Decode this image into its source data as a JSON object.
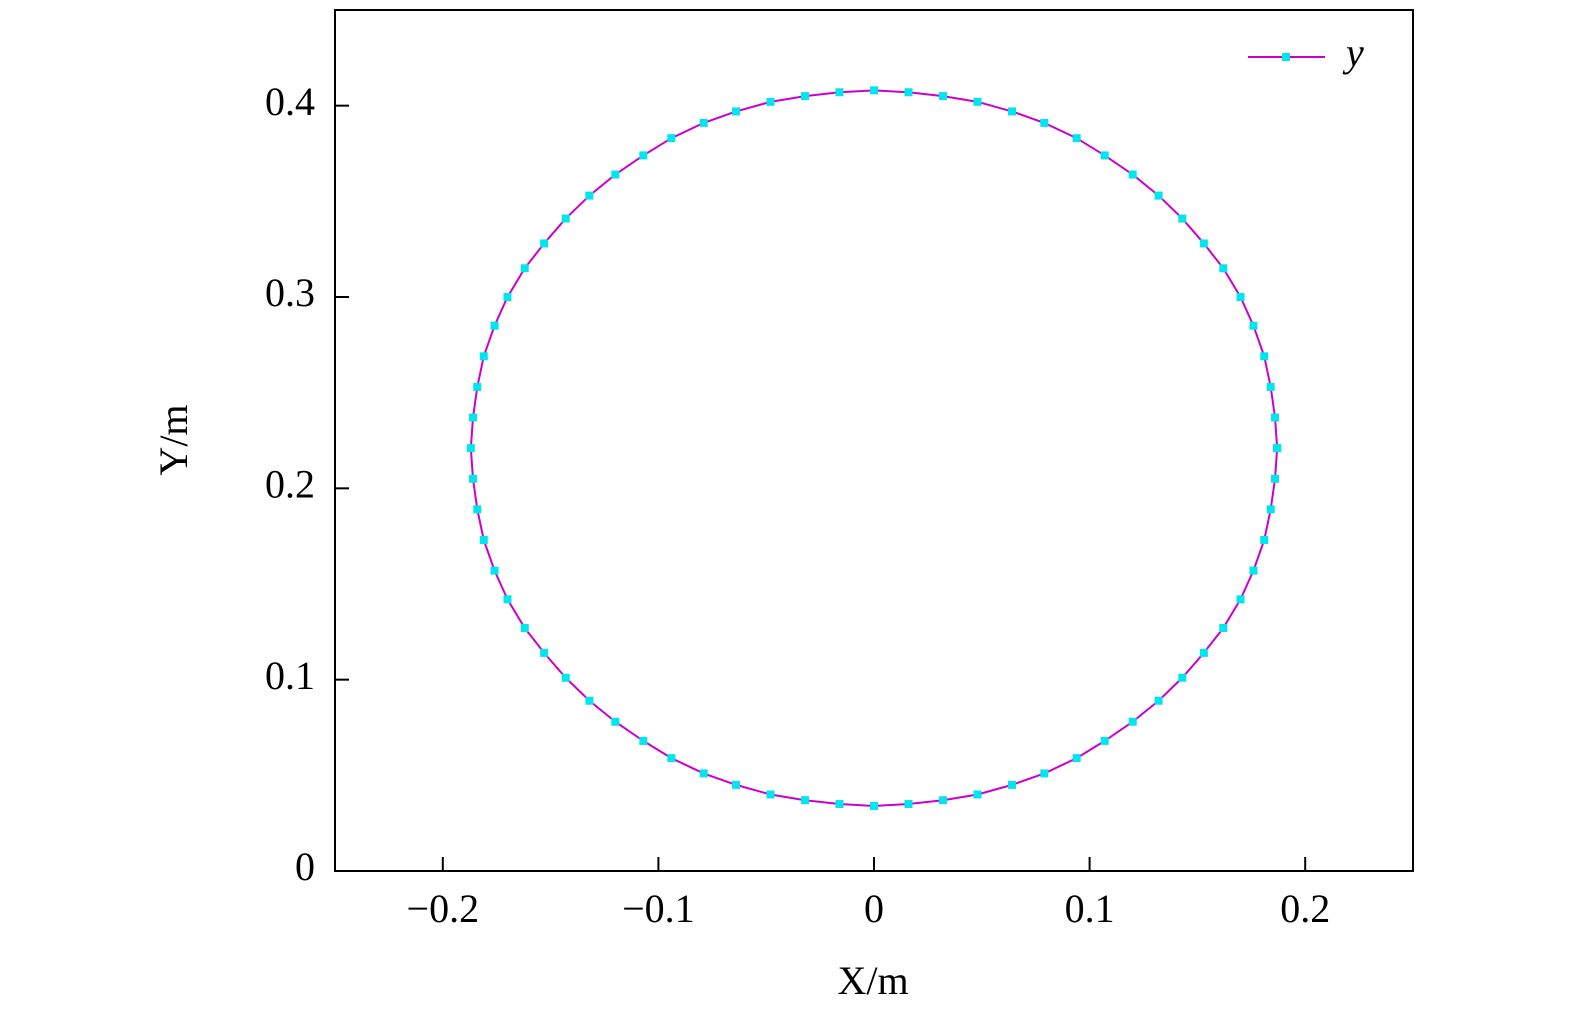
{
  "chart_data": {
    "type": "line",
    "xlabel": "X/m",
    "ylabel": "Y/m",
    "xlim": [
      -0.25,
      0.25
    ],
    "ylim": [
      0,
      0.45
    ],
    "xticks": [
      {
        "value": -0.2,
        "label": "−0.2"
      },
      {
        "value": -0.1,
        "label": "−0.1"
      },
      0,
      0.1,
      0.2
    ],
    "yticks": [
      0,
      0.1,
      0.2,
      0.3,
      0.4
    ],
    "legend": "top-right",
    "x": [
      0.187,
      0.186,
      0.184,
      0.181,
      0.176,
      0.17,
      0.162,
      0.153,
      0.143,
      0.132,
      0.12,
      0.107,
      0.094,
      0.079,
      0.064,
      0.048,
      0.032,
      0.016,
      0,
      -0.016,
      -0.032,
      -0.048,
      -0.064,
      -0.079,
      -0.094,
      -0.107,
      -0.12,
      -0.132,
      -0.143,
      -0.153,
      -0.162,
      -0.17,
      -0.176,
      -0.181,
      -0.184,
      -0.186,
      -0.187,
      -0.186,
      -0.184,
      -0.181,
      -0.176,
      -0.17,
      -0.162,
      -0.153,
      -0.143,
      -0.132,
      -0.12,
      -0.107,
      -0.094,
      -0.079,
      -0.064,
      -0.048,
      -0.032,
      -0.016,
      0,
      0.016,
      0.032,
      0.048,
      0.064,
      0.079,
      0.094,
      0.107,
      0.12,
      0.132,
      0.143,
      0.153,
      0.162,
      0.17,
      0.176,
      0.181,
      0.184,
      0.186,
      0.187
    ],
    "series": [
      {
        "name": "y",
        "color": "#cc00cc",
        "marker_color": "#00e5ee",
        "values": [
          0.221,
          0.237,
          0.253,
          0.269,
          0.285,
          0.3,
          0.315,
          0.328,
          0.341,
          0.353,
          0.364,
          0.374,
          0.383,
          0.391,
          0.397,
          0.402,
          0.405,
          0.407,
          0.408,
          0.407,
          0.405,
          0.402,
          0.397,
          0.391,
          0.383,
          0.374,
          0.364,
          0.353,
          0.341,
          0.328,
          0.315,
          0.3,
          0.285,
          0.269,
          0.253,
          0.237,
          0.221,
          0.205,
          0.189,
          0.173,
          0.157,
          0.142,
          0.127,
          0.114,
          0.101,
          0.089,
          0.078,
          0.068,
          0.059,
          0.051,
          0.045,
          0.04,
          0.037,
          0.035,
          0.034,
          0.035,
          0.037,
          0.04,
          0.045,
          0.051,
          0.059,
          0.068,
          0.078,
          0.089,
          0.101,
          0.114,
          0.127,
          0.142,
          0.157,
          0.173,
          0.189,
          0.205,
          0.221
        ]
      }
    ]
  }
}
